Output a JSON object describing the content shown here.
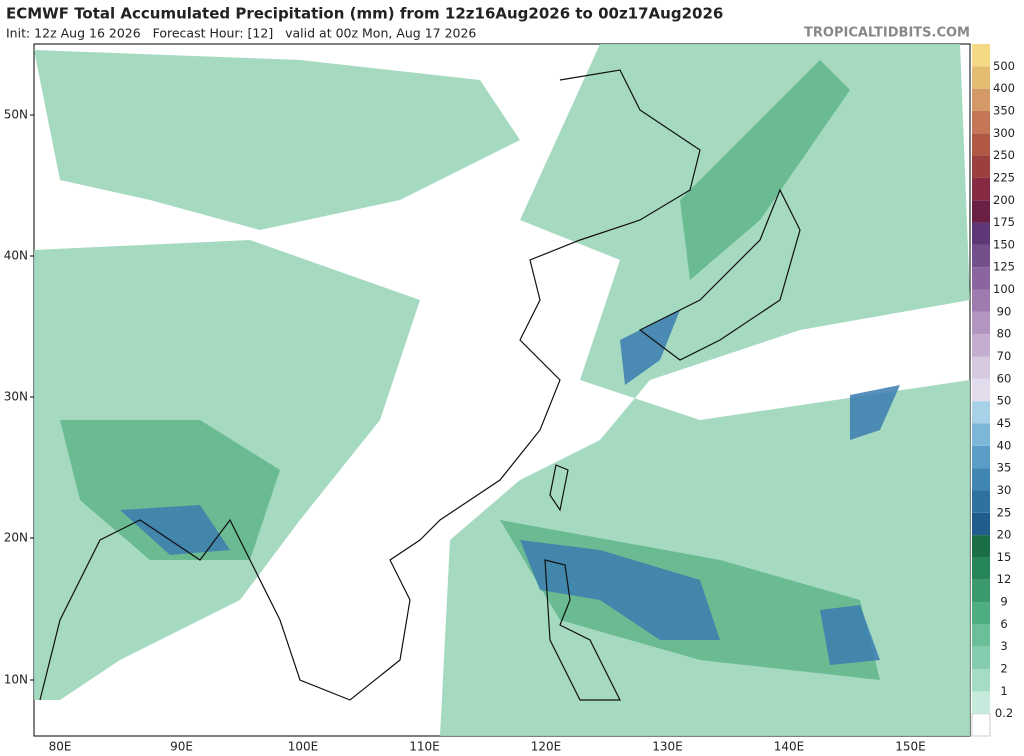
{
  "header": {
    "title": "ECMWF Total Accumulated Precipitation (mm) from 12z16Aug2026 to 00z17Aug2026",
    "subtitle": "Init: 12z Aug 16 2026   Forecast Hour: [12]   valid at 00z Mon, Aug 17 2026",
    "site": "TROPICALTIDBITS.COM"
  },
  "map": {
    "lat_labels": [
      "50N",
      "40N",
      "30N",
      "20N",
      "10N"
    ],
    "lon_labels": [
      "80E",
      "90E",
      "100E",
      "110E",
      "120E",
      "130E",
      "140E",
      "150E"
    ]
  },
  "colorbar": {
    "levels": [
      0.2,
      1,
      2,
      3,
      6,
      9,
      12,
      15,
      20,
      25,
      30,
      35,
      40,
      45,
      50,
      60,
      70,
      80,
      90,
      100,
      125,
      150,
      175,
      200,
      225,
      250,
      300,
      350,
      400,
      500
    ],
    "colors": [
      "#c6eadb",
      "#a4dcc4",
      "#86cdaf",
      "#6bbf98",
      "#4fae81",
      "#3a9a6c",
      "#26865a",
      "#1b6f47",
      "#215c8c",
      "#2e72a0",
      "#3f86b3",
      "#5a9ec8",
      "#7cb7d8",
      "#a6d1e6",
      "#e3dcec",
      "#d6c8de",
      "#c4aed0",
      "#b295c0",
      "#9e7cb0",
      "#8b65a1",
      "#734f8c",
      "#5e3876",
      "#6b1f45",
      "#862b41",
      "#9c3f3f",
      "#b05844",
      "#c47656",
      "#d39a68",
      "#e4bd72",
      "#f6d985"
    ]
  }
}
